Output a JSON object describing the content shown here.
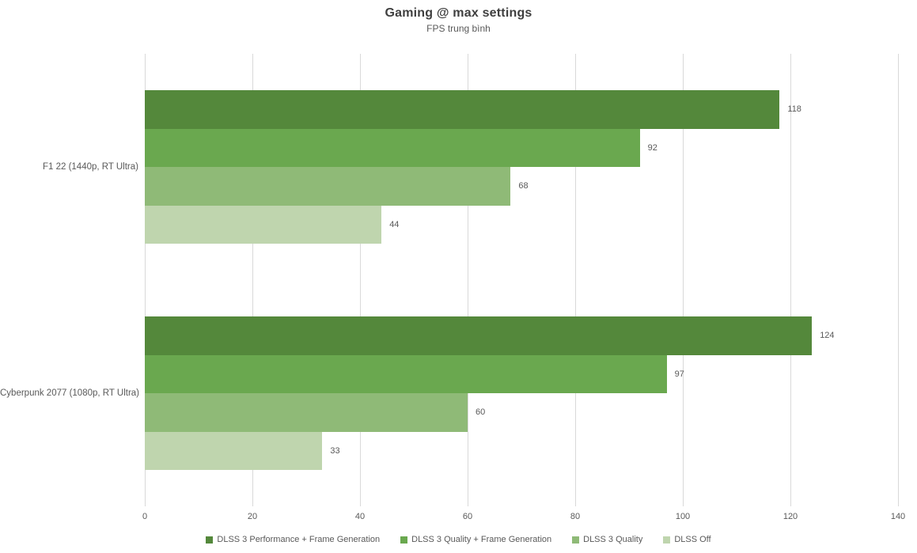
{
  "chart": {
    "title": "Gaming @ max settings",
    "subtitle": "FPS trung bình"
  },
  "chart_data": {
    "type": "bar",
    "orientation": "horizontal",
    "title": "Gaming @ max settings",
    "subtitle": "FPS trung bình",
    "categories": [
      "F1 22 (1440p, RT Ultra)",
      "Cyberpunk 2077 (1080p, RT Ultra)"
    ],
    "series": [
      {
        "name": "DLSS 3 Performance + Frame Generation",
        "color": "#54883B",
        "values": [
          118,
          124
        ]
      },
      {
        "name": "DLSS 3 Quality + Frame Generation",
        "color": "#6AA84F",
        "values": [
          92,
          97
        ]
      },
      {
        "name": "DLSS 3 Quality",
        "color": "#8FBA77",
        "values": [
          68,
          60
        ]
      },
      {
        "name": "DLSS Off",
        "color": "#BFD5AE",
        "values": [
          44,
          33
        ]
      }
    ],
    "x_axis": {
      "min": 0,
      "max": 140,
      "ticks": [
        0,
        20,
        40,
        60,
        80,
        100,
        120,
        140
      ]
    },
    "grid": true,
    "value_labels": true,
    "legend_position": "bottom",
    "colors": {
      "gridline": "#d9d9d9",
      "text": "#595959",
      "title": "#3f3f3f"
    }
  }
}
